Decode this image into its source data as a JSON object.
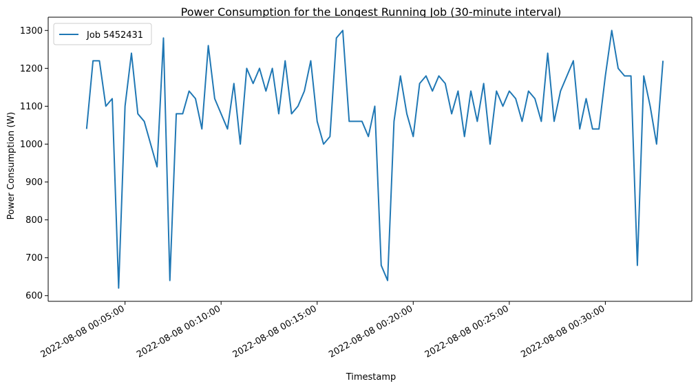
{
  "chart_data": {
    "type": "line",
    "title": "Power Consumption for the Longest Running Job (30-minute interval)",
    "xlabel": "Timestamp",
    "ylabel": "Power Consumption (W)",
    "x_axis_type": "time",
    "x_ticks": [
      "2022-08-08 00:05:00",
      "2022-08-08 00:10:00",
      "2022-08-08 00:15:00",
      "2022-08-08 00:20:00",
      "2022-08-08 00:25:00",
      "2022-08-08 00:30:00"
    ],
    "y_ticks": [
      600,
      700,
      800,
      900,
      1000,
      1100,
      1200,
      1300
    ],
    "xlim": [
      "2022-08-08 00:01:00",
      "2022-08-08 00:34:30"
    ],
    "ylim": [
      585,
      1335
    ],
    "grid": false,
    "legend_position": "top-left",
    "series": [
      {
        "name": "Job 5452431",
        "color": "#1f77b4",
        "x": [
          "2022-08-08 00:03:00",
          "2022-08-08 00:03:20",
          "2022-08-08 00:03:40",
          "2022-08-08 00:04:00",
          "2022-08-08 00:04:20",
          "2022-08-08 00:04:40",
          "2022-08-08 00:05:00",
          "2022-08-08 00:05:20",
          "2022-08-08 00:05:40",
          "2022-08-08 00:06:00",
          "2022-08-08 00:06:20",
          "2022-08-08 00:06:40",
          "2022-08-08 00:07:00",
          "2022-08-08 00:07:20",
          "2022-08-08 00:07:40",
          "2022-08-08 00:08:00",
          "2022-08-08 00:08:20",
          "2022-08-08 00:08:40",
          "2022-08-08 00:09:00",
          "2022-08-08 00:09:20",
          "2022-08-08 00:09:40",
          "2022-08-08 00:10:00",
          "2022-08-08 00:10:20",
          "2022-08-08 00:10:40",
          "2022-08-08 00:11:00",
          "2022-08-08 00:11:20",
          "2022-08-08 00:11:40",
          "2022-08-08 00:12:00",
          "2022-08-08 00:12:20",
          "2022-08-08 00:12:40",
          "2022-08-08 00:13:00",
          "2022-08-08 00:13:20",
          "2022-08-08 00:13:40",
          "2022-08-08 00:14:00",
          "2022-08-08 00:14:20",
          "2022-08-08 00:14:40",
          "2022-08-08 00:15:00",
          "2022-08-08 00:15:20",
          "2022-08-08 00:15:40",
          "2022-08-08 00:16:00",
          "2022-08-08 00:16:20",
          "2022-08-08 00:16:40",
          "2022-08-08 00:17:00",
          "2022-08-08 00:17:20",
          "2022-08-08 00:17:40",
          "2022-08-08 00:18:00",
          "2022-08-08 00:18:20",
          "2022-08-08 00:18:40",
          "2022-08-08 00:19:00",
          "2022-08-08 00:19:20",
          "2022-08-08 00:19:40",
          "2022-08-08 00:20:00",
          "2022-08-08 00:20:20",
          "2022-08-08 00:20:40",
          "2022-08-08 00:21:00",
          "2022-08-08 00:21:20",
          "2022-08-08 00:21:40",
          "2022-08-08 00:22:00",
          "2022-08-08 00:22:20",
          "2022-08-08 00:22:40",
          "2022-08-08 00:23:00",
          "2022-08-08 00:23:20",
          "2022-08-08 00:23:40",
          "2022-08-08 00:24:00",
          "2022-08-08 00:24:20",
          "2022-08-08 00:24:40",
          "2022-08-08 00:25:00",
          "2022-08-08 00:25:20",
          "2022-08-08 00:25:40",
          "2022-08-08 00:26:00",
          "2022-08-08 00:26:20",
          "2022-08-08 00:26:40",
          "2022-08-08 00:27:00",
          "2022-08-08 00:27:20",
          "2022-08-08 00:27:40",
          "2022-08-08 00:28:00",
          "2022-08-08 00:28:20",
          "2022-08-08 00:28:40",
          "2022-08-08 00:29:00",
          "2022-08-08 00:29:20",
          "2022-08-08 00:29:40",
          "2022-08-08 00:30:00",
          "2022-08-08 00:30:20",
          "2022-08-08 00:30:40",
          "2022-08-08 00:31:00",
          "2022-08-08 00:31:20",
          "2022-08-08 00:31:40",
          "2022-08-08 00:32:00",
          "2022-08-08 00:32:20",
          "2022-08-08 00:32:40",
          "2022-08-08 00:33:00"
        ],
        "values": [
          1040,
          1220,
          1220,
          1100,
          1120,
          620,
          1100,
          1240,
          1080,
          1060,
          1000,
          940,
          1280,
          640,
          1080,
          1080,
          1140,
          1120,
          1040,
          1260,
          1120,
          1080,
          1040,
          1160,
          1000,
          1200,
          1160,
          1200,
          1140,
          1200,
          1080,
          1220,
          1080,
          1100,
          1140,
          1220,
          1060,
          1000,
          1020,
          1280,
          1300,
          1060,
          1060,
          1060,
          1020,
          1100,
          680,
          640,
          1060,
          1180,
          1080,
          1020,
          1160,
          1180,
          1140,
          1180,
          1160,
          1080,
          1140,
          1020,
          1140,
          1060,
          1160,
          1000,
          1140,
          1100,
          1140,
          1120,
          1060,
          1140,
          1120,
          1060,
          1240,
          1060,
          1140,
          1180,
          1220,
          1040,
          1120,
          1040,
          1040,
          1180,
          1300,
          1200,
          1180,
          1180,
          680,
          1180,
          1100,
          1000,
          1220
        ]
      }
    ]
  }
}
